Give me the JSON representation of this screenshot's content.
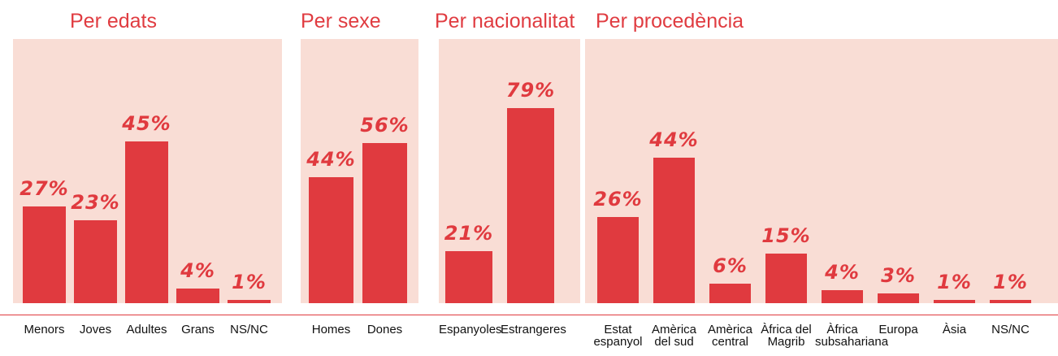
{
  "chart_data": [
    {
      "type": "bar",
      "title": "Per edats",
      "categories": [
        "Menors",
        "Joves",
        "Adultes",
        "Grans",
        "NS/NC"
      ],
      "values": [
        27,
        23,
        45,
        4,
        1
      ],
      "value_labels": [
        "27%",
        "23%",
        "45%",
        "4%",
        "1%"
      ],
      "color": "#e03a3f"
    },
    {
      "type": "bar",
      "title": "Per sexe",
      "categories": [
        "Homes",
        "Dones"
      ],
      "values": [
        44,
        56
      ],
      "value_labels": [
        "44%",
        "56%"
      ],
      "color": "#e03a3f"
    },
    {
      "type": "bar",
      "title": "Per nacionalitat",
      "categories": [
        "Espanyoles",
        "Estrangeres"
      ],
      "values": [
        21,
        79
      ],
      "value_labels": [
        "21%",
        "79%"
      ],
      "color": "#e03a3f"
    },
    {
      "type": "bar",
      "title": "Per procedència",
      "categories": [
        "Estat espanyol",
        "Amèrica del sud",
        "Amèrica central",
        "Àfrica del Magrib",
        "Àfrica subsahariana",
        "Europa",
        "Àsia",
        "NS/NC"
      ],
      "values": [
        26,
        44,
        6,
        15,
        4,
        3,
        1,
        1
      ],
      "value_labels": [
        "26%",
        "44%",
        "6%",
        "15%",
        "4%",
        "3%",
        "1%",
        "1%"
      ],
      "color": "#e03a3f"
    }
  ]
}
